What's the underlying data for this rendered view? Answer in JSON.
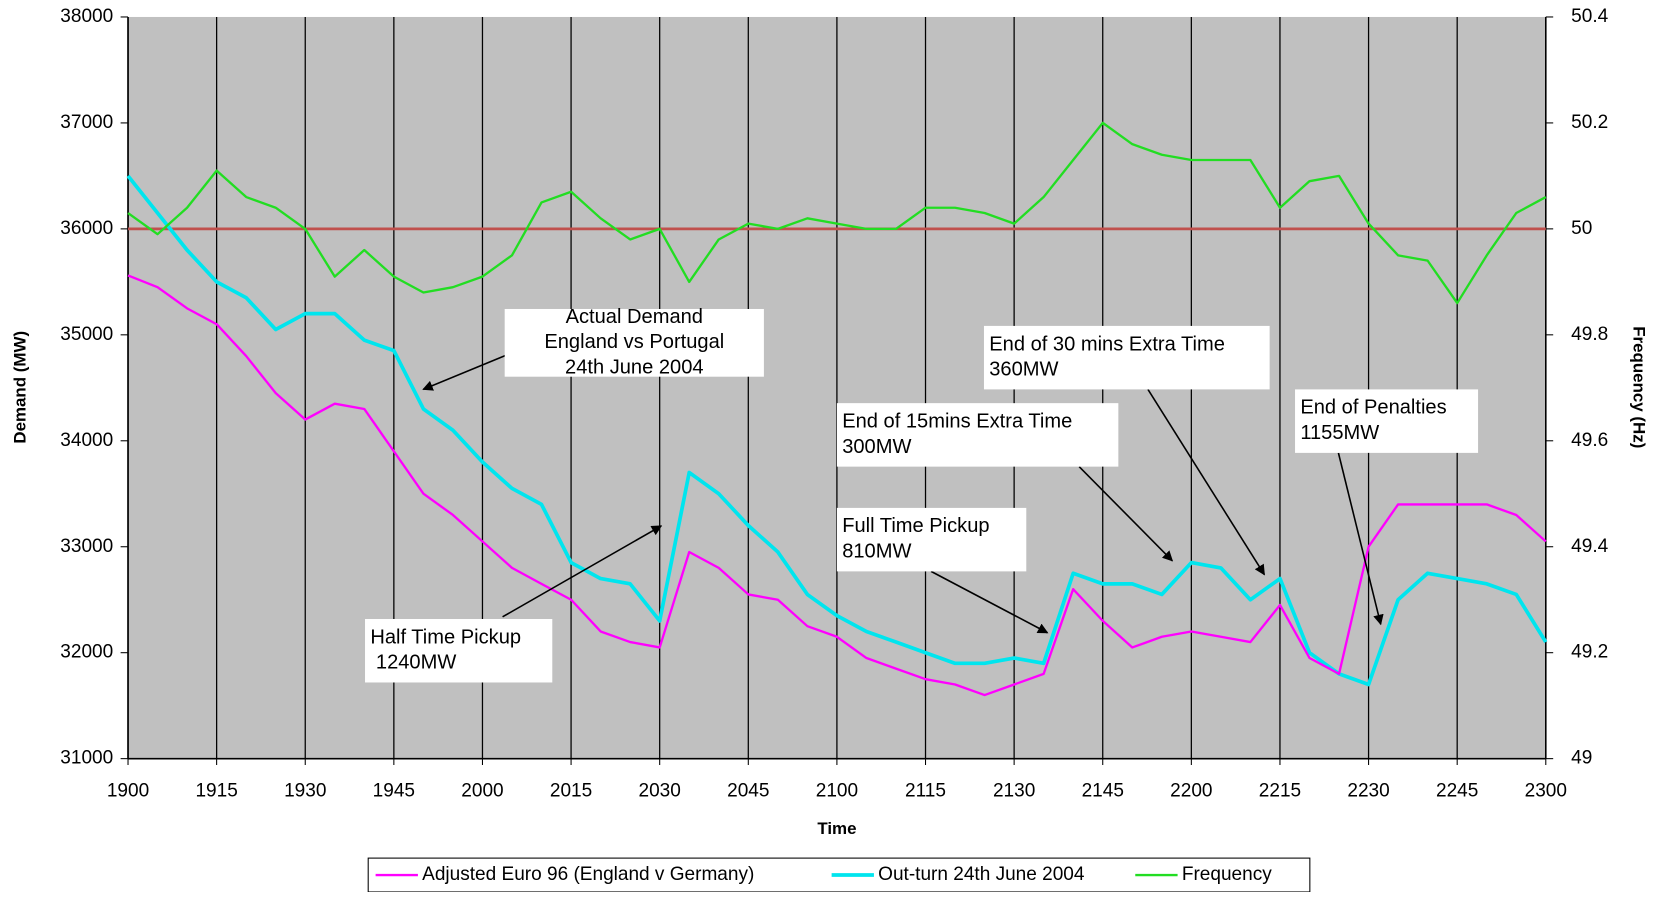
{
  "chart_data": {
    "type": "line",
    "x_label": "Time",
    "y_label": "Demand (MW)",
    "y2_label": "Frequency (Hz)",
    "categories": [
      "1900",
      null,
      null,
      "1915",
      null,
      null,
      "1930",
      null,
      null,
      "1945",
      null,
      null,
      "2000",
      null,
      null,
      "2015",
      null,
      null,
      "2030",
      null,
      null,
      "2045",
      null,
      null,
      "2100",
      null,
      null,
      "2115",
      null,
      null,
      "2130",
      null,
      null,
      "2145",
      null,
      null,
      "2200",
      null,
      null,
      "2215",
      null,
      null,
      "2230",
      null,
      null,
      "2245",
      null,
      null,
      "2300"
    ],
    "ylim": [
      31000,
      38000
    ],
    "yticks": [
      31000,
      32000,
      33000,
      34000,
      35000,
      36000,
      37000,
      38000
    ],
    "y2lim": [
      49,
      50.4
    ],
    "y2ticks": [
      49,
      49.2,
      49.4,
      49.6,
      49.8,
      50,
      50.2,
      50.4
    ],
    "grid": "x",
    "background": "#c0c0c0",
    "reference_line": {
      "axis": "y2",
      "value": 50,
      "color": "#c0504d"
    },
    "legend": "bottom",
    "series": [
      {
        "name": "Adjusted Euro 96 (England v Germany)",
        "color": "#ff00ff",
        "values": [
          35560,
          35450,
          35250,
          35100,
          34800,
          34450,
          34200,
          34350,
          34300,
          33900,
          33500,
          33300,
          33050,
          32800,
          32650,
          32500,
          32200,
          32100,
          32050,
          32950,
          32800,
          32550,
          32500,
          32250,
          32150,
          31950,
          31850,
          31750,
          31700,
          31600,
          31700,
          31800,
          32600,
          32300,
          32050,
          32150,
          32200,
          32150,
          32100,
          32450,
          31950,
          31800,
          33000,
          33400,
          33400,
          33400,
          33400,
          33300,
          33050
        ]
      },
      {
        "name": "Out-turn 24th June 2004",
        "color": "#00e5ee",
        "values": [
          36500,
          36150,
          35800,
          35500,
          35350,
          35050,
          35200,
          35200,
          34950,
          34850,
          34300,
          34100,
          33800,
          33550,
          33400,
          32850,
          32700,
          32650,
          32300,
          33700,
          33500,
          33200,
          32950,
          32550,
          32350,
          32200,
          32100,
          32000,
          31900,
          31900,
          31950,
          31900,
          32750,
          32650,
          32650,
          32550,
          32850,
          32800,
          32500,
          32700,
          32000,
          31800,
          31700,
          32500,
          32750,
          32700,
          32650,
          32550,
          32100
        ]
      },
      {
        "name": "Frequency",
        "color": "#22dd22",
        "axis": "y2",
        "values": [
          50.03,
          49.99,
          50.04,
          50.11,
          50.06,
          50.04,
          50.0,
          49.91,
          49.96,
          49.91,
          49.88,
          49.89,
          49.91,
          49.95,
          50.05,
          50.07,
          50.02,
          49.98,
          50.0,
          49.9,
          49.98,
          50.01,
          50.0,
          50.02,
          50.01,
          50.0,
          50.0,
          50.04,
          50.04,
          50.03,
          50.01,
          50.06,
          50.13,
          50.2,
          50.16,
          50.14,
          50.13,
          50.13,
          50.13,
          50.04,
          50.09,
          50.1,
          50.01,
          49.95,
          49.94,
          49.86,
          49.95,
          50.03,
          50.06
        ]
      }
    ],
    "annotations": [
      {
        "lines": [
          "Actual Demand",
          "England vs Portugal",
          "24th June 2004"
        ]
      },
      {
        "lines": [
          "Half Time Pickup",
          " 1240MW"
        ]
      },
      {
        "lines": [
          "Full Time Pickup",
          "810MW"
        ]
      },
      {
        "lines": [
          "End of 15mins Extra Time",
          "300MW"
        ]
      },
      {
        "lines": [
          "End of 30 mins Extra Time",
          "360MW"
        ]
      },
      {
        "lines": [
          "End of Penalties",
          "1155MW"
        ]
      }
    ]
  }
}
